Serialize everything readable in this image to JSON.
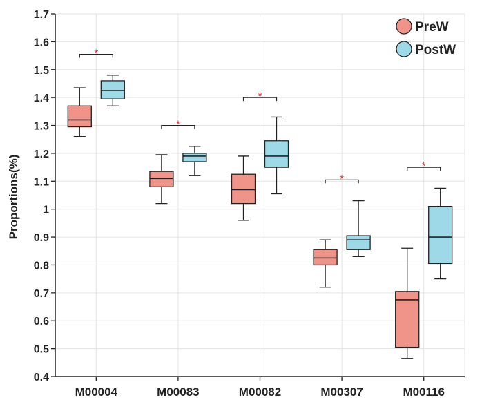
{
  "chart_data": {
    "type": "boxplot",
    "title": "",
    "xlabel": "",
    "ylabel": "Proportions(%)",
    "ylim": [
      0.4,
      1.7
    ],
    "yticks": [
      0.4,
      0.5,
      0.6,
      0.7,
      0.8,
      0.9,
      1,
      1.1,
      1.2,
      1.3,
      1.4,
      1.5,
      1.6,
      1.7
    ],
    "ytick_labels": [
      "0.4",
      "0.5",
      "0.6",
      "0.7",
      "0.8",
      "0.9",
      "1",
      "1.1",
      "1.2",
      "1.3",
      "1.4",
      "1.5",
      "1.6",
      "1.7"
    ],
    "grid": true,
    "legend_position": "top-right",
    "categories": [
      "M00004",
      "M00083",
      "M00082",
      "M00307",
      "M00116"
    ],
    "series": [
      {
        "name": "PreW",
        "color": "#F0948A",
        "boxes": [
          {
            "min": 1.26,
            "q1": 1.295,
            "median": 1.32,
            "q3": 1.37,
            "max": 1.435
          },
          {
            "min": 1.02,
            "q1": 1.08,
            "median": 1.11,
            "q3": 1.135,
            "max": 1.195
          },
          {
            "min": 0.96,
            "q1": 1.02,
            "median": 1.07,
            "q3": 1.125,
            "max": 1.19
          },
          {
            "min": 0.72,
            "q1": 0.8,
            "median": 0.825,
            "q3": 0.855,
            "max": 0.89
          },
          {
            "min": 0.465,
            "q1": 0.505,
            "median": 0.675,
            "q3": 0.705,
            "max": 0.86
          }
        ]
      },
      {
        "name": "PostW",
        "color": "#9ED9E7",
        "boxes": [
          {
            "min": 1.37,
            "q1": 1.395,
            "median": 1.425,
            "q3": 1.46,
            "max": 1.48
          },
          {
            "min": 1.12,
            "q1": 1.17,
            "median": 1.19,
            "q3": 1.2,
            "max": 1.225
          },
          {
            "min": 1.055,
            "q1": 1.15,
            "median": 1.19,
            "q3": 1.245,
            "max": 1.33
          },
          {
            "min": 0.83,
            "q1": 0.855,
            "median": 0.89,
            "q3": 0.905,
            "max": 1.03
          },
          {
            "min": 0.75,
            "q1": 0.805,
            "median": 0.9,
            "q3": 1.01,
            "max": 1.075
          }
        ]
      }
    ],
    "significance": [
      {
        "category": "M00004",
        "y": 1.555,
        "label": "*"
      },
      {
        "category": "M00083",
        "y": 1.3,
        "label": "*"
      },
      {
        "category": "M00082",
        "y": 1.4,
        "label": "*"
      },
      {
        "category": "M00307",
        "y": 1.105,
        "label": "*"
      },
      {
        "category": "M00116",
        "y": 1.15,
        "label": "*"
      }
    ],
    "significance_color": "#E8262B"
  }
}
